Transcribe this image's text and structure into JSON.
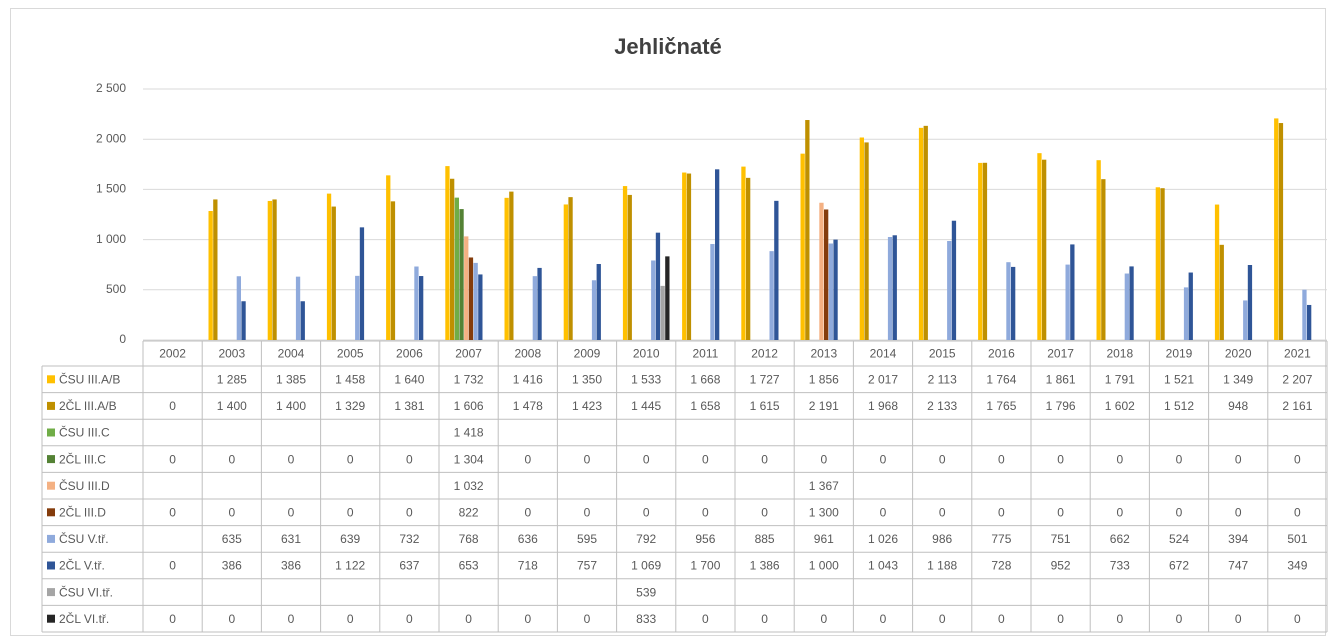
{
  "chart_data": {
    "type": "bar",
    "title": "Jehličnaté",
    "categories": [
      "2002",
      "2003",
      "2004",
      "2005",
      "2006",
      "2007",
      "2008",
      "2009",
      "2010",
      "2011",
      "2012",
      "2013",
      "2014",
      "2015",
      "2016",
      "2017",
      "2018",
      "2019",
      "2020",
      "2021"
    ],
    "ylim": [
      0,
      2500
    ],
    "yticks": [
      0,
      500,
      {
        "value": 1000,
        "label": "1 000"
      },
      {
        "value": 1500,
        "label": "1 500"
      },
      {
        "value": 2000,
        "label": "2 000"
      },
      {
        "value": 2500,
        "label": "2 500"
      }
    ],
    "grid": true,
    "series": [
      {
        "name": "ČSU III.A/B",
        "color": "#ffc000",
        "values": [
          null,
          1285,
          1385,
          1458,
          1640,
          1732,
          1416,
          1350,
          1533,
          1668,
          1727,
          1856,
          2017,
          2113,
          1764,
          1861,
          1791,
          1521,
          1349,
          2207
        ],
        "value_labels": [
          null,
          "1 285",
          "1 385",
          "1 458",
          "1 640",
          "1 732",
          "1 416",
          "1 350",
          "1 533",
          "1 668",
          "1 727",
          "1 856",
          "2 017",
          "2 113",
          "1 764",
          "1 861",
          "1 791",
          "1 521",
          "1 349",
          "2 207"
        ]
      },
      {
        "name": "2ČL III.A/B",
        "color": "#bf9000",
        "values": [
          0,
          1400,
          1400,
          1329,
          1381,
          1606,
          1478,
          1423,
          1445,
          1658,
          1615,
          2191,
          1968,
          2133,
          1765,
          1796,
          1602,
          1512,
          948,
          2161
        ],
        "value_labels": [
          "0",
          "1 400",
          "1 400",
          "1 329",
          "1 381",
          "1 606",
          "1 478",
          "1 423",
          "1 445",
          "1 658",
          "1 615",
          "2 191",
          "1 968",
          "2 133",
          "1 765",
          "1 796",
          "1 602",
          "1 512",
          "948",
          "2 161"
        ]
      },
      {
        "name": "ČSU III.C",
        "color": "#70ad47",
        "values": [
          null,
          null,
          null,
          null,
          null,
          1418,
          null,
          null,
          null,
          null,
          null,
          null,
          null,
          null,
          null,
          null,
          null,
          null,
          null,
          null
        ],
        "value_labels": [
          null,
          null,
          null,
          null,
          null,
          "1 418",
          null,
          null,
          null,
          null,
          null,
          null,
          null,
          null,
          null,
          null,
          null,
          null,
          null,
          null
        ]
      },
      {
        "name": "2ČL III.C",
        "color": "#548235",
        "values": [
          0,
          0,
          0,
          0,
          0,
          1304,
          0,
          0,
          0,
          0,
          0,
          0,
          0,
          0,
          0,
          0,
          0,
          0,
          0,
          0
        ],
        "value_labels": [
          "0",
          "0",
          "0",
          "0",
          "0",
          "1 304",
          "0",
          "0",
          "0",
          "0",
          "0",
          "0",
          "0",
          "0",
          "0",
          "0",
          "0",
          "0",
          "0",
          "0"
        ]
      },
      {
        "name": "ČSU III.D",
        "color": "#f4b183",
        "values": [
          null,
          null,
          null,
          null,
          null,
          1032,
          null,
          null,
          null,
          null,
          null,
          1367,
          null,
          null,
          null,
          null,
          null,
          null,
          null,
          null
        ],
        "value_labels": [
          null,
          null,
          null,
          null,
          null,
          "1 032",
          null,
          null,
          null,
          null,
          null,
          "1 367",
          null,
          null,
          null,
          null,
          null,
          null,
          null,
          null
        ]
      },
      {
        "name": "2ČL III.D",
        "color": "#843c0c",
        "values": [
          0,
          0,
          0,
          0,
          0,
          822,
          0,
          0,
          0,
          0,
          0,
          1300,
          0,
          0,
          0,
          0,
          0,
          0,
          0,
          0
        ],
        "value_labels": [
          "0",
          "0",
          "0",
          "0",
          "0",
          "822",
          "0",
          "0",
          "0",
          "0",
          "0",
          "1 300",
          "0",
          "0",
          "0",
          "0",
          "0",
          "0",
          "0",
          "0"
        ]
      },
      {
        "name": "ČSU V.tř.",
        "color": "#8faadc",
        "values": [
          null,
          635,
          631,
          639,
          732,
          768,
          636,
          595,
          792,
          956,
          885,
          961,
          1026,
          986,
          775,
          751,
          662,
          524,
          394,
          501
        ],
        "value_labels": [
          null,
          "635",
          "631",
          "639",
          "732",
          "768",
          "636",
          "595",
          "792",
          "956",
          "885",
          "961",
          "1 026",
          "986",
          "775",
          "751",
          "662",
          "524",
          "394",
          "501"
        ]
      },
      {
        "name": "2ČL V.tř.",
        "color": "#2f5597",
        "values": [
          0,
          386,
          386,
          1122,
          637,
          653,
          718,
          757,
          1069,
          1700,
          1386,
          1000,
          1043,
          1188,
          728,
          952,
          733,
          672,
          747,
          349
        ],
        "value_labels": [
          "0",
          "386",
          "386",
          "1 122",
          "637",
          "653",
          "718",
          "757",
          "1 069",
          "1 700",
          "1 386",
          "1 000",
          "1 043",
          "1 188",
          "728",
          "952",
          "733",
          "672",
          "747",
          "349"
        ]
      },
      {
        "name": "ČSU VI.tř.",
        "color": "#a5a5a5",
        "values": [
          null,
          null,
          null,
          null,
          null,
          null,
          null,
          null,
          539,
          null,
          null,
          null,
          null,
          null,
          null,
          null,
          null,
          null,
          null,
          null
        ],
        "value_labels": [
          null,
          null,
          null,
          null,
          null,
          null,
          null,
          null,
          "539",
          null,
          null,
          null,
          null,
          null,
          null,
          null,
          null,
          null,
          null,
          null
        ]
      },
      {
        "name": "2ČL VI.tř.",
        "color": "#262626",
        "values": [
          0,
          0,
          0,
          0,
          0,
          0,
          0,
          0,
          833,
          0,
          0,
          0,
          0,
          0,
          0,
          0,
          0,
          0,
          0,
          0
        ],
        "value_labels": [
          "0",
          "0",
          "0",
          "0",
          "0",
          "0",
          "0",
          "0",
          "833",
          "0",
          "0",
          "0",
          "0",
          "0",
          "0",
          "0",
          "0",
          "0",
          "0",
          "0"
        ]
      }
    ]
  }
}
